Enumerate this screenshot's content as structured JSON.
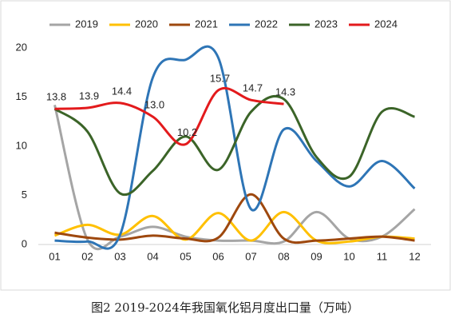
{
  "chart_data": {
    "type": "line",
    "title": "图2 2019-2024年我国氧化铝月度出口量（万吨）",
    "categories": [
      "01",
      "02",
      "03",
      "04",
      "05",
      "06",
      "07",
      "08",
      "09",
      "10",
      "11",
      "12"
    ],
    "series": [
      {
        "name": "2019",
        "color": "#a5a5a5",
        "values": [
          14.2,
          0.5,
          0.8,
          1.8,
          0.8,
          0.4,
          0.4,
          0.3,
          3.3,
          0.6,
          0.8,
          3.6
        ]
      },
      {
        "name": "2020",
        "color": "#ffc000",
        "values": [
          0.9,
          2.0,
          1.0,
          2.9,
          0.5,
          3.2,
          0.4,
          3.3,
          0.4,
          0.3,
          0.8,
          0.6
        ]
      },
      {
        "name": "2021",
        "color": "#9e480e",
        "values": [
          1.2,
          0.7,
          0.5,
          0.9,
          0.6,
          0.7,
          5.1,
          0.6,
          0.4,
          0.6,
          0.8,
          0.4
        ]
      },
      {
        "name": "2022",
        "color": "#2e75b6",
        "values": [
          0.4,
          0.3,
          1.0,
          17.0,
          18.8,
          19.0,
          3.6,
          11.7,
          8.5,
          5.9,
          8.5,
          5.7
        ]
      },
      {
        "name": "2023",
        "color": "#3b6428",
        "values": [
          13.8,
          11.5,
          5.2,
          7.5,
          11.0,
          7.6,
          13.5,
          14.8,
          8.9,
          6.9,
          13.5,
          13.0
        ]
      },
      {
        "name": "2024",
        "color": "#e31a1c",
        "values": [
          13.8,
          13.9,
          14.4,
          13.0,
          10.2,
          15.7,
          14.7,
          14.3,
          null,
          null,
          null,
          null
        ],
        "value_labels": [
          "13.8",
          "13.9",
          "14.4",
          "13.0",
          "10.2",
          "15.7",
          "14.7",
          "14.3",
          null,
          null,
          null,
          null
        ]
      }
    ],
    "ylim": [
      0,
      20
    ],
    "yticks": [
      0,
      5,
      10,
      15,
      20
    ],
    "grid": false,
    "legend": "top"
  }
}
